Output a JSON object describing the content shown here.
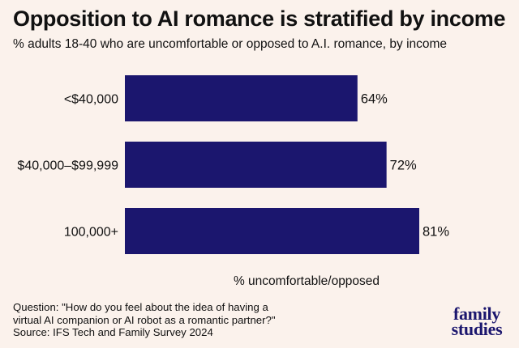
{
  "header": {
    "title": "Opposition to AI romance is stratified by income",
    "subtitle": "% adults 18-40 who are uncomfortable or opposed to A.I. romance, by income"
  },
  "footnote": {
    "question_line1": "Question: \"How do you feel about the idea of having a",
    "question_line2": "virtual AI companion or AI robot as a romantic partner?\"",
    "source": "Source: IFS Tech and Family Survey 2024"
  },
  "logo": {
    "line1": "family",
    "line2": "studies"
  },
  "colors": {
    "bar": "#1b166e",
    "background": "#fbf2ec",
    "text": "#111111"
  },
  "chart_data": {
    "type": "bar",
    "orientation": "horizontal",
    "categories": [
      "<$40,000",
      "$40,000–$99,999",
      "100,000+"
    ],
    "values": [
      64,
      72,
      81
    ],
    "value_labels": [
      "64%",
      "72%",
      "81%"
    ],
    "title": "Opposition to AI romance is stratified by income",
    "xlabel": "% uncomfortable/opposed",
    "ylabel": "",
    "xlim": [
      0,
      81
    ],
    "grid": false,
    "legend": "none"
  }
}
